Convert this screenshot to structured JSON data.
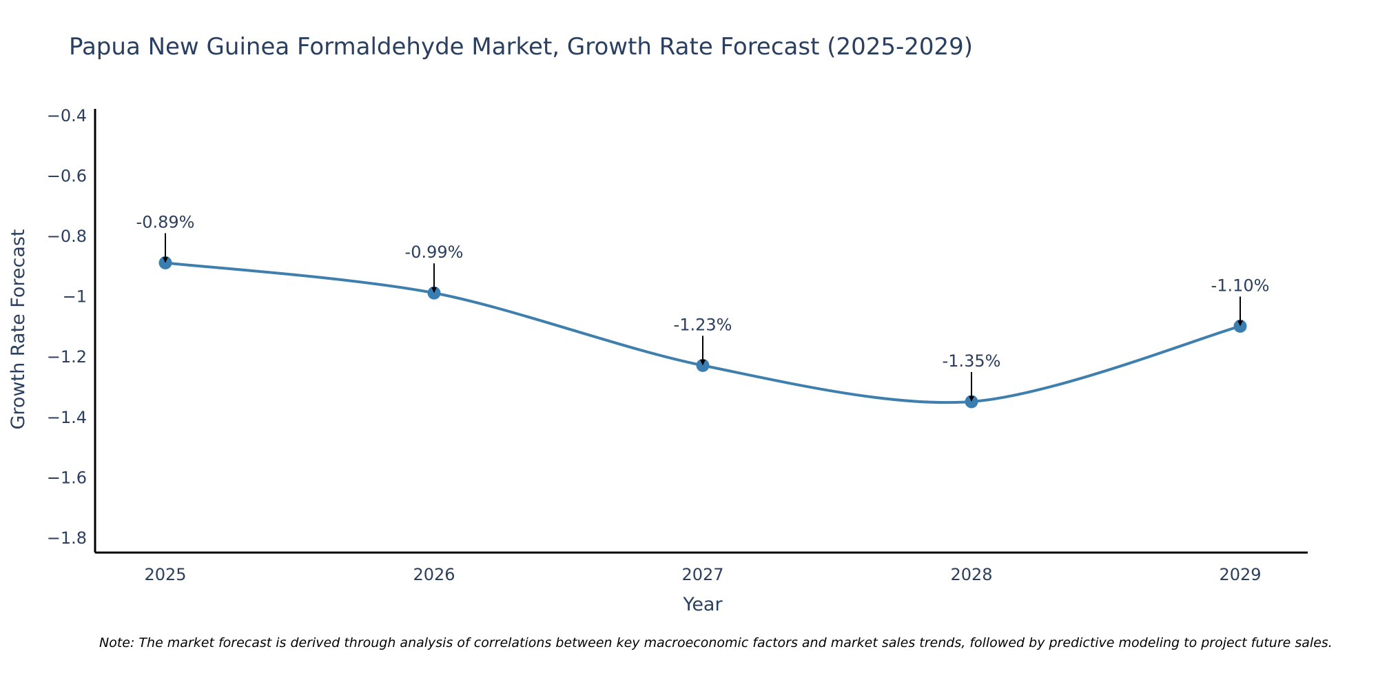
{
  "chart_data": {
    "type": "line",
    "title": "Papua New Guinea Formaldehyde Market, Growth Rate Forecast (2025-2029)",
    "xlabel": "Year",
    "ylabel": "Growth Rate Forecast",
    "categories": [
      "2025",
      "2026",
      "2027",
      "2028",
      "2029"
    ],
    "series": [
      {
        "name": "Growth Rate Forecast",
        "values": [
          -0.89,
          -0.99,
          -1.23,
          -1.35,
          -1.1
        ]
      }
    ],
    "data_labels": [
      "-0.89%",
      "-0.99%",
      "-1.23%",
      "-1.35%",
      "-1.10%"
    ],
    "yticks": [
      -0.4,
      -0.6,
      -0.8,
      -1.0,
      -1.2,
      -1.4,
      -1.6,
      -1.8
    ],
    "ytick_labels": [
      "−0.4",
      "−0.6",
      "−0.8",
      "−1",
      "−1.2",
      "−1.4",
      "−1.6",
      "−1.8"
    ],
    "ylim": [
      -1.85,
      -0.38
    ],
    "line_shape": "spline",
    "grid": false,
    "line_color": "#3f7fad",
    "marker_color": "#3a7db0",
    "note": "Note: The market forecast is derived through analysis of correlations between key macroeconomic factors and market sales trends, followed by predictive modeling to project future sales."
  }
}
